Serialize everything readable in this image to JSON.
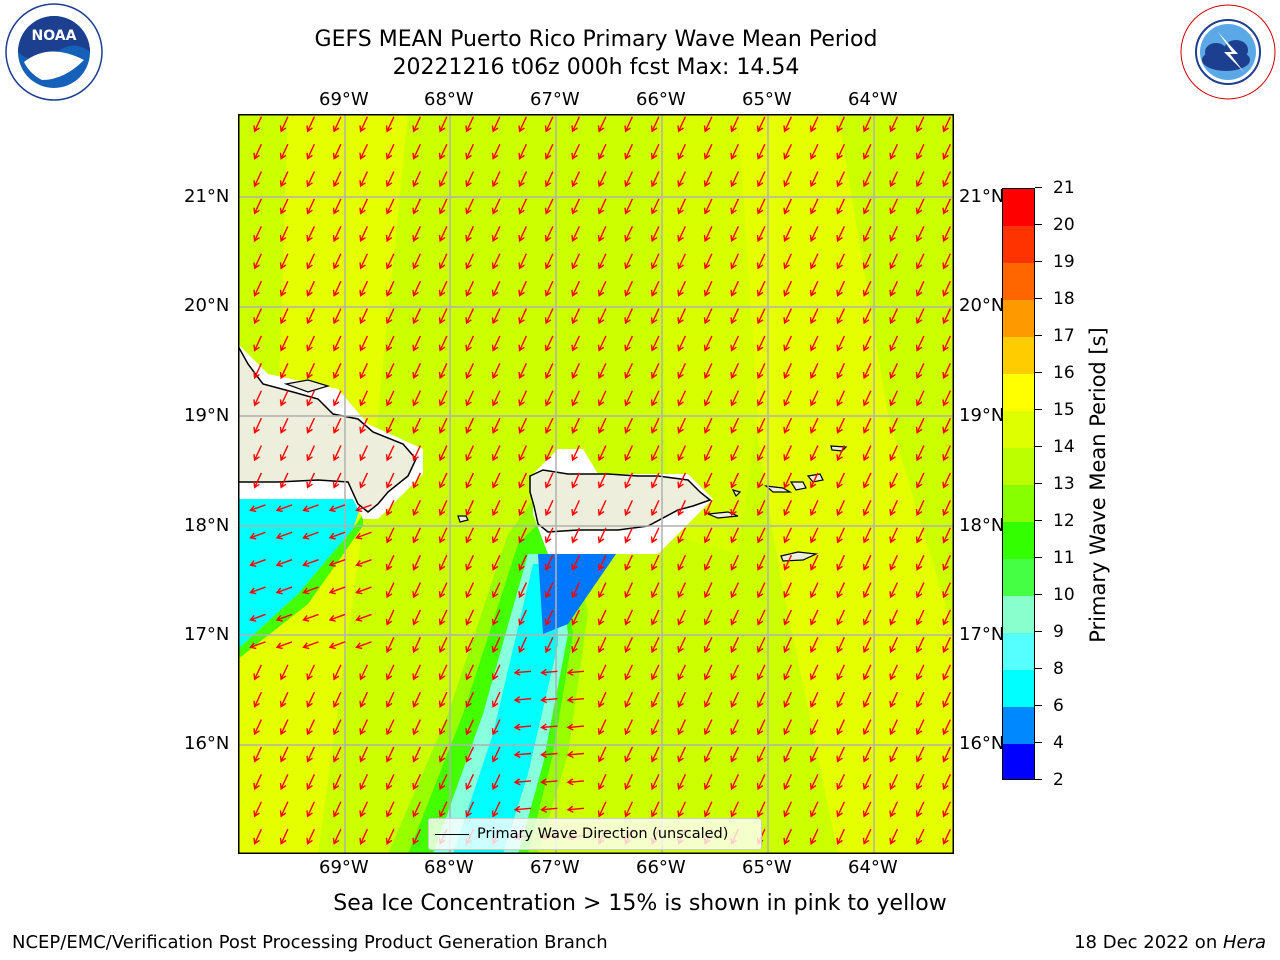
{
  "header": {
    "title_line1": "GEFS MEAN Puerto Rico Primary Wave Mean Period",
    "title_line2": "20221216 t06z 000h fcst   Max: 14.54"
  },
  "logos": {
    "left_name": "NOAA",
    "left_ring_text": "NATIONAL OCEANIC AND ATMOSPHERIC ADMINISTRATION · U.S. DEPARTMENT OF COMMERCE",
    "right_ring_text": "NATIONAL WEATHER SERVICE"
  },
  "map": {
    "lon_labels": [
      "69°W",
      "68°W",
      "67°W",
      "66°W",
      "65°W",
      "64°W"
    ],
    "lat_labels": [
      "21°N",
      "20°N",
      "19°N",
      "18°N",
      "17°N",
      "16°N"
    ],
    "legend_label": "Primary Wave Direction (unscaled)",
    "colors": {
      "field_13_14": "#ccff00",
      "field_14_15": "#e8ff00",
      "field_12_13": "#99ff00",
      "field_11_12": "#44ff00",
      "field_9_10": "#88ffdd",
      "field_8_9": "#55ffff",
      "field_6_8": "#00ffff",
      "field_4_6": "#0077ff",
      "land": "#eeeedd",
      "arrow": "#ff0000"
    }
  },
  "colorbar": {
    "label": "Primary Wave Mean Period [s]",
    "ticks": [
      "21",
      "20",
      "19",
      "18",
      "17",
      "16",
      "15",
      "14",
      "13",
      "12",
      "11",
      "10",
      "9",
      "8",
      "6",
      "4",
      "2"
    ],
    "colors": [
      "#ff0000",
      "#ff3300",
      "#ff6600",
      "#ff9900",
      "#ffcc00",
      "#ffff00",
      "#ddff00",
      "#bbff00",
      "#88ff00",
      "#33ff00",
      "#44ff44",
      "#88ffcc",
      "#55ffff",
      "#00ffff",
      "#0088ff",
      "#0000ff"
    ]
  },
  "footer": {
    "subtitle": "Sea Ice Concentration > 15% is shown in pink to yellow",
    "left": "NCEP/EMC/Verification Post Processing Product Generation Branch",
    "right_date": "18 Dec 2022 on ",
    "right_machine": "Hera"
  }
}
